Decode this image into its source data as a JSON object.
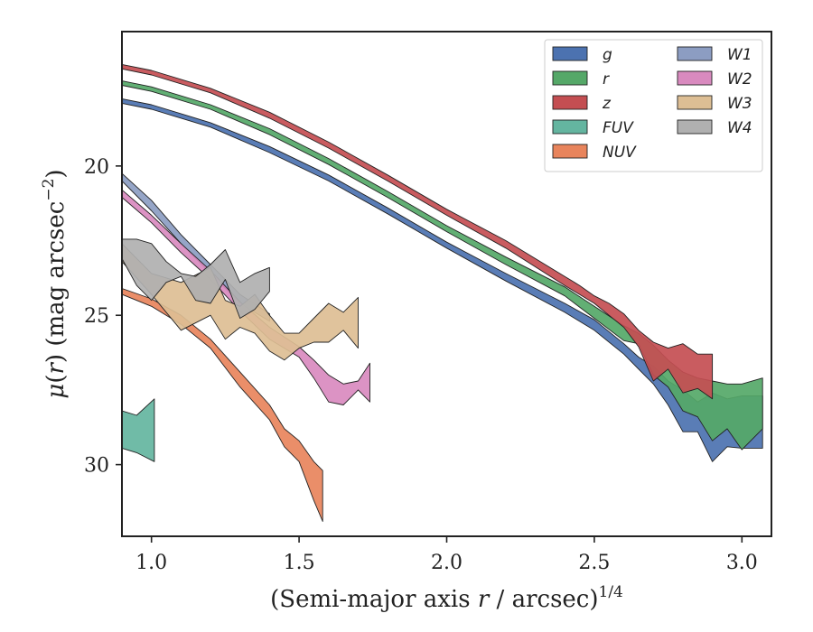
{
  "chart_data": {
    "type": "area",
    "xlabel": "(Semi-major axis r / arcsec)^1/4",
    "ylabel": "μ(r) (mag arcsec^−2)",
    "xlim": [
      0.9,
      3.1
    ],
    "ylim": [
      32.4,
      15.5
    ],
    "y_inverted": true,
    "x_ticks": [
      "1.0",
      "1.5",
      "2.0",
      "2.5",
      "3.0"
    ],
    "y_ticks": [
      "20",
      "25",
      "30"
    ],
    "grid": false,
    "legend": {
      "placement": "top-right",
      "columns": 2
    },
    "series": [
      {
        "name": "g",
        "color": "#4C72B0",
        "x": [
          0.9,
          1.0,
          1.2,
          1.4,
          1.6,
          1.8,
          2.0,
          2.2,
          2.4,
          2.5,
          2.6,
          2.65,
          2.7,
          2.75,
          2.8,
          2.85,
          2.9,
          2.95,
          3.0,
          3.07
        ],
        "lower": [
          17.75,
          17.95,
          18.55,
          19.35,
          20.3,
          21.4,
          22.55,
          23.6,
          24.6,
          25.15,
          25.95,
          26.4,
          26.7,
          27.2,
          27.5,
          27.9,
          27.6,
          27.8,
          27.7,
          27.7
        ],
        "upper": [
          17.9,
          18.1,
          18.7,
          19.55,
          20.5,
          21.6,
          22.75,
          23.85,
          24.9,
          25.5,
          26.3,
          26.8,
          27.3,
          28.0,
          28.9,
          28.9,
          29.9,
          29.4,
          29.45,
          29.45
        ]
      },
      {
        "name": "r",
        "color": "#55A868",
        "x": [
          0.9,
          1.0,
          1.2,
          1.4,
          1.6,
          1.8,
          2.0,
          2.2,
          2.4,
          2.5,
          2.6,
          2.65,
          2.7,
          2.75,
          2.8,
          2.85,
          2.9,
          2.95,
          3.0,
          3.07
        ],
        "lower": [
          17.15,
          17.35,
          17.95,
          18.75,
          19.75,
          20.85,
          22.0,
          23.05,
          24.05,
          24.7,
          25.35,
          25.6,
          26.0,
          26.5,
          26.9,
          27.1,
          27.2,
          27.3,
          27.3,
          27.1
        ],
        "upper": [
          17.3,
          17.5,
          18.1,
          18.95,
          19.95,
          21.05,
          22.2,
          23.3,
          24.35,
          25.1,
          25.85,
          25.95,
          27.0,
          27.4,
          28.2,
          28.4,
          29.2,
          28.8,
          29.5,
          28.8
        ]
      },
      {
        "name": "z",
        "color": "#C44E52",
        "x": [
          0.9,
          1.0,
          1.2,
          1.4,
          1.6,
          1.8,
          2.0,
          2.2,
          2.4,
          2.45,
          2.5,
          2.55,
          2.6,
          2.65,
          2.7,
          2.75,
          2.8,
          2.85,
          2.9
        ],
        "lower": [
          16.6,
          16.8,
          17.4,
          18.2,
          19.2,
          20.3,
          21.45,
          22.5,
          23.7,
          24.0,
          24.35,
          24.6,
          24.95,
          25.5,
          25.9,
          26.1,
          25.95,
          26.3,
          26.3
        ],
        "upper": [
          16.75,
          16.95,
          17.55,
          18.4,
          19.4,
          20.5,
          21.65,
          22.75,
          24.0,
          24.3,
          24.6,
          25.0,
          25.4,
          26.05,
          27.2,
          26.8,
          27.6,
          27.45,
          27.8
        ]
      },
      {
        "name": "FUV",
        "color": "#64B5A0",
        "x": [
          0.9,
          0.95,
          1.01
        ],
        "lower": [
          28.2,
          28.35,
          27.8
        ],
        "upper": [
          29.45,
          29.6,
          29.9
        ]
      },
      {
        "name": "NUV",
        "color": "#E8845C",
        "x": [
          0.9,
          1.0,
          1.1,
          1.2,
          1.3,
          1.4,
          1.45,
          1.5,
          1.55,
          1.58
        ],
        "lower": [
          24.1,
          24.45,
          25.0,
          25.8,
          26.9,
          28.0,
          28.8,
          29.2,
          29.9,
          30.2
        ],
        "upper": [
          24.3,
          24.7,
          25.3,
          26.1,
          27.4,
          28.5,
          29.4,
          29.9,
          31.2,
          31.9
        ]
      },
      {
        "name": "W1",
        "color": "#8C9DC2",
        "x": [
          0.9,
          1.0,
          1.1,
          1.2,
          1.3,
          1.4
        ],
        "lower": [
          20.25,
          21.15,
          22.3,
          23.3,
          24.3,
          24.95
        ],
        "upper": [
          20.5,
          21.5,
          22.6,
          23.6,
          24.6,
          25.2
        ]
      },
      {
        "name": "W2",
        "color": "#D98ABF",
        "x": [
          0.9,
          1.0,
          1.1,
          1.2,
          1.3,
          1.4,
          1.5,
          1.55,
          1.6,
          1.65,
          1.7,
          1.74
        ],
        "lower": [
          20.8,
          21.65,
          22.6,
          23.5,
          24.55,
          25.4,
          26.05,
          26.5,
          27.0,
          27.3,
          27.2,
          26.6
        ],
        "upper": [
          21.05,
          21.9,
          22.9,
          23.8,
          24.85,
          25.8,
          26.4,
          27.1,
          27.9,
          28.0,
          27.5,
          27.9
        ]
      },
      {
        "name": "W3",
        "color": "#DDBE94",
        "x": [
          0.9,
          1.0,
          1.1,
          1.2,
          1.25,
          1.3,
          1.35,
          1.4,
          1.45,
          1.5,
          1.55,
          1.6,
          1.65,
          1.7
        ],
        "lower": [
          22.6,
          23.6,
          23.9,
          23.4,
          24.5,
          24.7,
          24.3,
          25.0,
          25.6,
          25.6,
          25.1,
          24.6,
          24.9,
          24.4
        ],
        "upper": [
          23.2,
          24.3,
          25.5,
          25.0,
          25.8,
          25.4,
          25.6,
          26.2,
          26.5,
          26.1,
          25.9,
          25.9,
          25.5,
          26.1
        ]
      },
      {
        "name": "W4",
        "color": "#B0B0B0",
        "x": [
          0.9,
          0.95,
          1.0,
          1.05,
          1.1,
          1.15,
          1.2,
          1.25,
          1.3,
          1.35,
          1.4
        ],
        "lower": [
          22.45,
          22.45,
          22.6,
          23.2,
          23.6,
          23.7,
          23.3,
          22.8,
          23.9,
          23.6,
          23.4
        ],
        "upper": [
          23.1,
          24.0,
          24.5,
          23.9,
          23.7,
          24.5,
          24.6,
          23.8,
          25.1,
          24.8,
          24.2
        ]
      }
    ]
  }
}
